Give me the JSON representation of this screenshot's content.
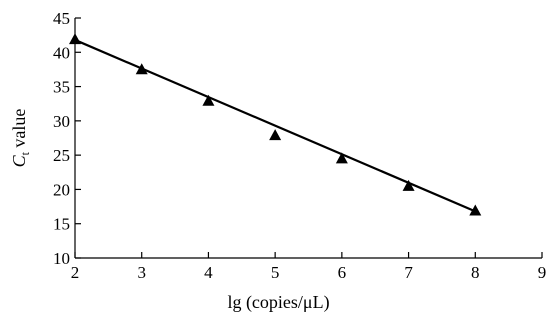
{
  "chart_data": {
    "type": "scatter",
    "xlabel": "lg (copies/μL)",
    "ylabel_main": "C",
    "ylabel_sub": "t",
    "ylabel_rest": " value",
    "xlim": [
      2,
      9
    ],
    "ylim": [
      10,
      45
    ],
    "xticks": [
      2,
      3,
      4,
      5,
      6,
      7,
      8,
      9
    ],
    "yticks": [
      10,
      15,
      20,
      25,
      30,
      35,
      40,
      45
    ],
    "grid": false,
    "series": [
      {
        "marker": "triangle",
        "color": "#000000",
        "x": [
          2,
          3,
          4,
          5,
          6,
          7,
          8
        ],
        "y": [
          42.0,
          37.6,
          33.0,
          28.0,
          24.6,
          20.6,
          17.0
        ]
      }
    ],
    "fit_line": {
      "x": [
        2,
        8
      ],
      "y": [
        41.8,
        16.8
      ],
      "color": "#000000"
    }
  }
}
